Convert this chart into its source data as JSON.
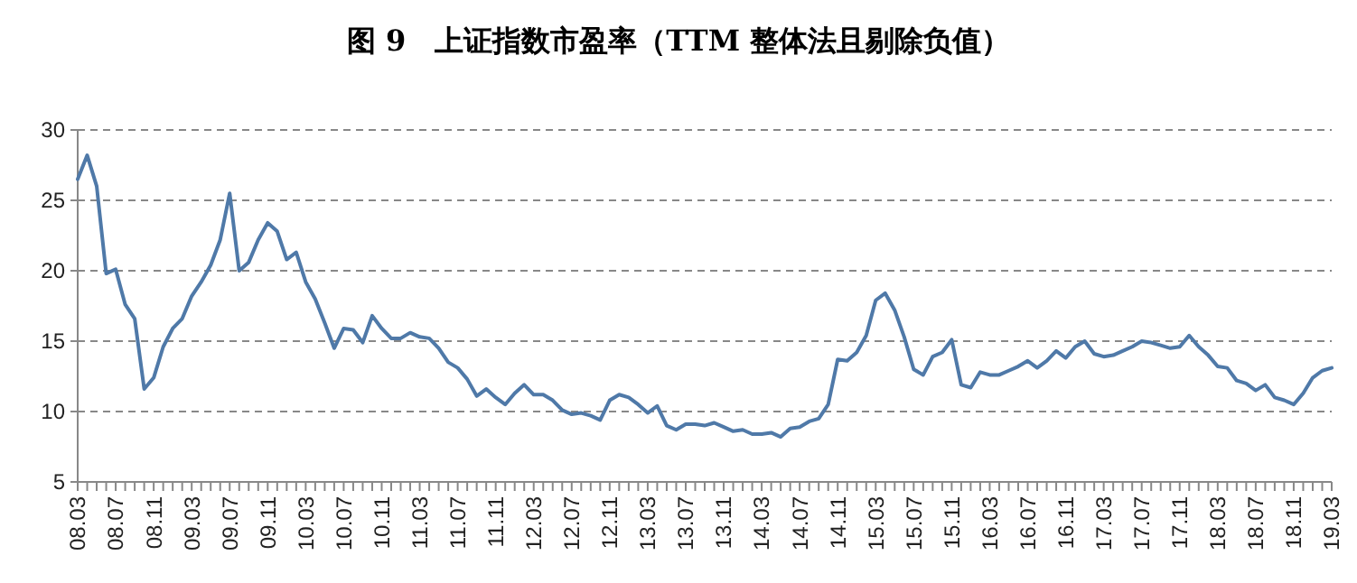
{
  "chart_data": {
    "type": "line",
    "title": "图 9　上证指数市盈率（TTM 整体法且剔除负值）",
    "categories": [
      "08.03",
      null,
      null,
      null,
      "08.07",
      null,
      null,
      null,
      "08.11",
      null,
      null,
      null,
      "09.03",
      null,
      null,
      null,
      "09.07",
      null,
      null,
      null,
      "09.11",
      null,
      null,
      null,
      "10.03",
      null,
      null,
      null,
      "10.07",
      null,
      null,
      null,
      "10.11",
      null,
      null,
      null,
      "11.03",
      null,
      null,
      null,
      "11.07",
      null,
      null,
      null,
      "11.11",
      null,
      null,
      null,
      "12.03",
      null,
      null,
      null,
      "12.07",
      null,
      null,
      null,
      "12.11",
      null,
      null,
      null,
      "13.03",
      null,
      null,
      null,
      "13.07",
      null,
      null,
      null,
      "13.11",
      null,
      null,
      null,
      "14.03",
      null,
      null,
      null,
      "14.07",
      null,
      null,
      null,
      "14.11",
      null,
      null,
      null,
      "15.03",
      null,
      null,
      null,
      "15.07",
      null,
      null,
      null,
      "15.11",
      null,
      null,
      null,
      "16.03",
      null,
      null,
      null,
      "16.07",
      null,
      null,
      null,
      "16.11",
      null,
      null,
      null,
      "17.03",
      null,
      null,
      null,
      "17.07",
      null,
      null,
      null,
      "17.11",
      null,
      null,
      null,
      "18.03",
      null,
      null,
      null,
      "18.07",
      null,
      null,
      null,
      "18.11",
      null,
      null,
      null,
      "19.03"
    ],
    "series": [
      {
        "color": "#4f79a8",
        "values": [
          26.5,
          28.2,
          26,
          19.8,
          20.1,
          17.6,
          16.6,
          11.6,
          12.4,
          14.6,
          15.9,
          16.6,
          18.2,
          19.2,
          20.4,
          22.2,
          25.5,
          20.0,
          20.6,
          22.2,
          23.4,
          22.8,
          20.8,
          21.3,
          19.2,
          18.0,
          16.3,
          14.5,
          15.9,
          15.8,
          14.9,
          16.8,
          15.9,
          15.2,
          15.2,
          15.6,
          15.3,
          15.2,
          14.5,
          13.5,
          13.1,
          12.3,
          11.1,
          11.6,
          11.0,
          10.5,
          11.3,
          11.9,
          11.2,
          11.2,
          10.8,
          10.1,
          9.8,
          9.9,
          9.7,
          9.4,
          10.8,
          11.2,
          11.0,
          10.5,
          9.9,
          10.4,
          9.0,
          8.7,
          9.1,
          9.1,
          9.0,
          9.2,
          8.9,
          8.6,
          8.7,
          8.4,
          8.4,
          8.5,
          8.2,
          8.8,
          8.9,
          9.3,
          9.5,
          10.5,
          13.7,
          13.6,
          14.2,
          15.4,
          17.9,
          18.4,
          17.2,
          15.3,
          13.0,
          12.6,
          13.9,
          14.2,
          15.1,
          11.9,
          11.7,
          12.8,
          12.6,
          12.6,
          12.9,
          13.2,
          13.6,
          13.1,
          13.6,
          14.3,
          13.8,
          14.6,
          15.0,
          14.1,
          13.9,
          14.0,
          14.3,
          14.6,
          15.0,
          14.9,
          14.7,
          14.5,
          14.6,
          15.4,
          14.6,
          14.0,
          13.2,
          13.1,
          12.2,
          12.0,
          11.5,
          11.9,
          11.0,
          10.8,
          10.5,
          11.3,
          12.4,
          12.9,
          13.1
        ]
      }
    ],
    "ylim": [
      5,
      30
    ],
    "yticks": [
      5,
      10,
      15,
      20,
      25,
      30
    ],
    "grid": "y",
    "line_style": "solid",
    "marker": "none"
  }
}
